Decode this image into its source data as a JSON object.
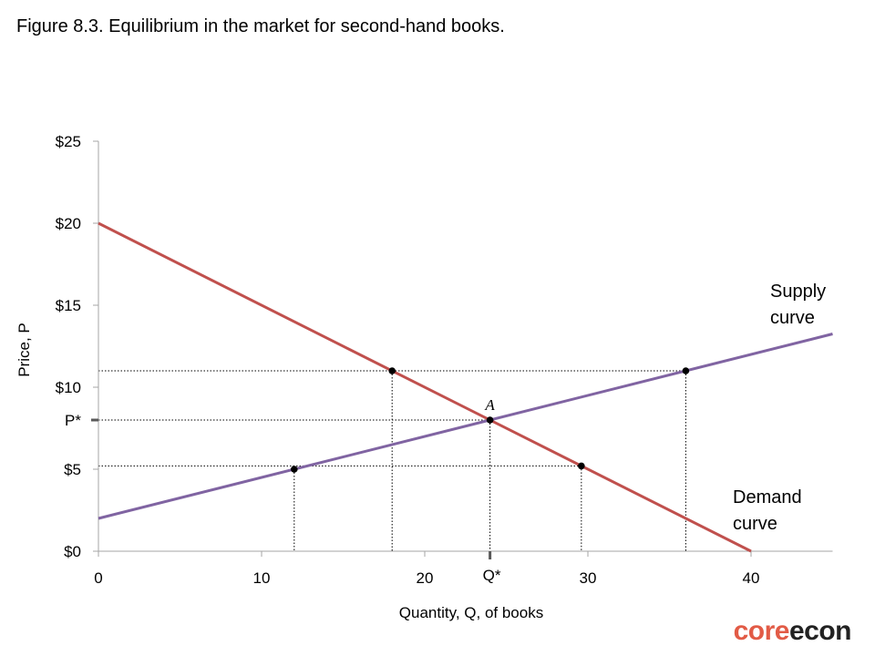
{
  "title": "Figure 8.3. Equilibrium in the market for second-hand books.",
  "logo": {
    "part1": "core",
    "part2": "econ"
  },
  "colors": {
    "demand": "#c0504d",
    "supply": "#8064a2",
    "axis": "#a6a6a6",
    "guide": "#000000",
    "logo_core": "#e25b46",
    "logo_econ": "#222222"
  },
  "chart_data": {
    "type": "line",
    "xlabel": "Quantity, Q, of books",
    "ylabel": "Price, P",
    "xlim": [
      0,
      45
    ],
    "ylim": [
      0,
      25
    ],
    "x_ticks": [
      {
        "value": 0,
        "label": "0"
      },
      {
        "value": 10,
        "label": "10"
      },
      {
        "value": 20,
        "label": "20"
      },
      {
        "value": 30,
        "label": "30"
      },
      {
        "value": 40,
        "label": "40"
      }
    ],
    "y_ticks": [
      {
        "value": 0,
        "label": "$0"
      },
      {
        "value": 5,
        "label": "$5"
      },
      {
        "value": 10,
        "label": "$10"
      },
      {
        "value": 15,
        "label": "$15"
      },
      {
        "value": 20,
        "label": "$20"
      },
      {
        "value": 25,
        "label": "$25"
      }
    ],
    "special_ticks": {
      "x": {
        "value": 24,
        "label": "Q*"
      },
      "y": {
        "value": 8,
        "label": "P*"
      }
    },
    "series": [
      {
        "name": "Demand curve",
        "label_lines": [
          "Demand",
          "curve"
        ],
        "x": [
          0,
          40
        ],
        "y": [
          20,
          0
        ]
      },
      {
        "name": "Supply curve",
        "label_lines": [
          "Supply",
          "curve"
        ],
        "x": [
          0,
          45
        ],
        "y": [
          2,
          13.25
        ]
      }
    ],
    "points": [
      {
        "x": 12,
        "y": 5
      },
      {
        "x": 18,
        "y": 11
      },
      {
        "x": 24,
        "y": 8,
        "label": "A"
      },
      {
        "x": 29.6,
        "y": 5.2
      },
      {
        "x": 36,
        "y": 11
      }
    ],
    "guides_h": [
      {
        "y": 11,
        "x_to": 36
      },
      {
        "y": 8,
        "x_to": 24
      },
      {
        "y": 5.2,
        "x_to": 29.6
      }
    ],
    "guides_v": [
      {
        "x": 12,
        "y_from": 5
      },
      {
        "x": 18,
        "y_from": 11
      },
      {
        "x": 24,
        "y_from": 8
      },
      {
        "x": 29.6,
        "y_from": 5.2
      },
      {
        "x": 36,
        "y_from": 11
      }
    ],
    "grid": false,
    "legend": "none"
  }
}
